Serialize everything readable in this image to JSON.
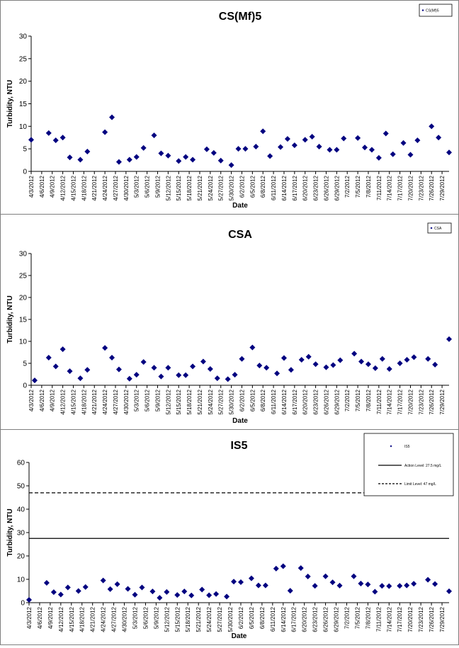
{
  "chart_data": [
    {
      "type": "scatter",
      "title": "CS(Mf)5",
      "xlabel": "Date",
      "ylabel": "Turbidity, NTU",
      "ylim": [
        0,
        30
      ],
      "yticks": [
        0,
        5,
        10,
        15,
        20,
        25,
        30
      ],
      "legend": {
        "position": "top-right",
        "entries": [
          "CS(Mf)5"
        ]
      },
      "x_ticks": [
        "4/3/2012",
        "4/6/2012",
        "4/9/2012",
        "4/12/2012",
        "4/15/2012",
        "4/18/2012",
        "4/21/2012",
        "4/24/2012",
        "4/27/2012",
        "4/30/2012",
        "5/3/2012",
        "5/6/2012",
        "5/9/2012",
        "5/12/2012",
        "5/15/2012",
        "5/18/2012",
        "5/21/2012",
        "5/24/2012",
        "5/27/2012",
        "5/30/2012",
        "6/2/2012",
        "6/5/2012",
        "6/8/2012",
        "6/11/2012",
        "6/14/2012",
        "6/17/2012",
        "6/20/2012",
        "6/23/2012",
        "6/26/2012",
        "6/29/2012",
        "7/2/2012",
        "7/5/2012",
        "7/8/2012",
        "7/11/2012",
        "7/14/2012",
        "7/17/2012",
        "7/20/2012",
        "7/23/2012",
        "7/26/2012",
        "7/29/2012"
      ],
      "x_range": [
        "4/3/2012",
        "7/31/2012"
      ],
      "series": [
        {
          "name": "CS(Mf)5",
          "color": "#000080",
          "x": [
            "4/3/2012",
            "4/8/2012",
            "4/10/2012",
            "4/12/2012",
            "4/14/2012",
            "4/17/2012",
            "4/19/2012",
            "4/24/2012",
            "4/26/2012",
            "4/28/2012",
            "5/1/2012",
            "5/3/2012",
            "5/5/2012",
            "5/8/2012",
            "5/10/2012",
            "5/12/2012",
            "5/15/2012",
            "5/17/2012",
            "5/19/2012",
            "5/23/2012",
            "5/25/2012",
            "5/27/2012",
            "5/30/2012",
            "6/1/2012",
            "6/3/2012",
            "6/6/2012",
            "6/8/2012",
            "6/10/2012",
            "6/13/2012",
            "6/15/2012",
            "6/17/2012",
            "6/20/2012",
            "6/22/2012",
            "6/24/2012",
            "6/27/2012",
            "6/29/2012",
            "7/1/2012",
            "7/5/2012",
            "7/7/2012",
            "7/9/2012",
            "7/11/2012",
            "7/13/2012",
            "7/15/2012",
            "7/18/2012",
            "7/20/2012",
            "7/22/2012",
            "7/26/2012",
            "7/28/2012",
            "7/31/2012"
          ],
          "y": [
            7,
            8.5,
            6.9,
            7.5,
            3.1,
            2.6,
            4.4,
            8.7,
            12,
            2.1,
            2.6,
            3.2,
            5.2,
            8,
            4,
            3.5,
            2.3,
            3.2,
            2.6,
            4.9,
            4.1,
            2.4,
            1.4,
            5,
            5,
            5.5,
            8.9,
            3.4,
            5.4,
            7.2,
            5.8,
            7,
            7.7,
            5.5,
            4.8,
            4.8,
            7.3,
            7.4,
            5.3,
            4.8,
            3,
            8.4,
            3.8,
            6.3,
            3.7,
            6.9,
            10,
            7.5,
            4.2
          ]
        }
      ]
    },
    {
      "type": "scatter",
      "title": "CSA",
      "xlabel": "Date",
      "ylabel": "Turbidity, NTU",
      "ylim": [
        0,
        30
      ],
      "yticks": [
        0,
        5,
        10,
        15,
        20,
        25,
        30
      ],
      "legend": {
        "position": "top-right",
        "entries": [
          "CSA"
        ]
      },
      "x_ticks": [
        "4/3/2012",
        "4/6/2012",
        "4/9/2012",
        "4/12/2012",
        "4/15/2012",
        "4/18/2012",
        "4/21/2012",
        "4/24/2012",
        "4/27/2012",
        "4/30/2012",
        "5/3/2012",
        "5/6/2012",
        "5/9/2012",
        "5/12/2012",
        "5/15/2012",
        "5/18/2012",
        "5/21/2012",
        "5/24/2012",
        "5/27/2012",
        "5/30/2012",
        "6/2/2012",
        "6/5/2012",
        "6/8/2012",
        "6/11/2012",
        "6/14/2012",
        "6/17/2012",
        "6/20/2012",
        "6/23/2012",
        "6/26/2012",
        "6/29/2012",
        "7/2/2012",
        "7/5/2012",
        "7/8/2012",
        "7/11/2012",
        "7/14/2012",
        "7/17/2012",
        "7/20/2012",
        "7/23/2012",
        "7/26/2012",
        "7/29/2012"
      ],
      "x_range": [
        "4/3/2012",
        "7/31/2012"
      ],
      "series": [
        {
          "name": "CSA",
          "color": "#000080",
          "x": [
            "4/4/2012",
            "4/8/2012",
            "4/10/2012",
            "4/12/2012",
            "4/14/2012",
            "4/17/2012",
            "4/19/2012",
            "4/24/2012",
            "4/26/2012",
            "4/28/2012",
            "5/1/2012",
            "5/3/2012",
            "5/5/2012",
            "5/8/2012",
            "5/10/2012",
            "5/12/2012",
            "5/15/2012",
            "5/17/2012",
            "5/19/2012",
            "5/22/2012",
            "5/24/2012",
            "5/26/2012",
            "5/29/2012",
            "5/31/2012",
            "6/2/2012",
            "6/5/2012",
            "6/7/2012",
            "6/9/2012",
            "6/12/2012",
            "6/14/2012",
            "6/16/2012",
            "6/19/2012",
            "6/21/2012",
            "6/23/2012",
            "6/26/2012",
            "6/28/2012",
            "6/30/2012",
            "7/4/2012",
            "7/6/2012",
            "7/8/2012",
            "7/10/2012",
            "7/12/2012",
            "7/14/2012",
            "7/17/2012",
            "7/19/2012",
            "7/21/2012",
            "7/25/2012",
            "7/27/2012",
            "7/31/2012"
          ],
          "y": [
            1.1,
            6.3,
            4.3,
            8.2,
            3.2,
            1.6,
            3.5,
            8.5,
            6.3,
            3.6,
            1.5,
            2.4,
            5.3,
            4,
            2,
            4,
            2.3,
            2.3,
            4.3,
            5.4,
            3.7,
            1.6,
            1.4,
            2.4,
            6,
            8.6,
            4.5,
            4,
            2.7,
            6.2,
            3.5,
            5.8,
            6.5,
            4.8,
            4.1,
            4.6,
            5.7,
            7.2,
            5.4,
            4.8,
            3.9,
            6,
            3.7,
            5,
            5.8,
            6.4,
            6,
            4.7,
            10.5
          ]
        }
      ]
    },
    {
      "type": "scatter",
      "title": "IS5",
      "xlabel": "Date",
      "ylabel": "Turbidity, NTU",
      "ylim": [
        0,
        60
      ],
      "yticks": [
        0,
        10,
        20,
        30,
        40,
        50,
        60
      ],
      "legend": {
        "position": "top-right",
        "entries": [
          "IS5",
          "Action Level: 27.5 mg/L",
          "Limit Level: 47 mg/L"
        ]
      },
      "x_ticks": [
        "4/3/2012",
        "4/6/2012",
        "4/9/2012",
        "4/12/2012",
        "4/15/2012",
        "4/18/2012",
        "4/21/2012",
        "4/24/2012",
        "4/27/2012",
        "4/30/2012",
        "5/3/2012",
        "5/6/2012",
        "5/9/2012",
        "5/12/2012",
        "5/15/2012",
        "5/18/2012",
        "5/21/2012",
        "5/24/2012",
        "5/27/2012",
        "5/30/2012",
        "6/2/2012",
        "6/5/2012",
        "6/8/2012",
        "6/11/2012",
        "6/14/2012",
        "6/17/2012",
        "6/20/2012",
        "6/23/2012",
        "6/26/2012",
        "6/29/2012",
        "7/2/2012",
        "7/5/2012",
        "7/8/2012",
        "7/11/2012",
        "7/14/2012",
        "7/17/2012",
        "7/20/2012",
        "7/23/2012",
        "7/26/2012",
        "7/29/2012"
      ],
      "x_range": [
        "4/3/2012",
        "7/31/2012"
      ],
      "reference_lines": [
        {
          "name": "Action Level: 27.5 mg/L",
          "y": 27.5,
          "style": "solid"
        },
        {
          "name": "Limit Level: 47 mg/L",
          "y": 47,
          "style": "dashed"
        }
      ],
      "series": [
        {
          "name": "IS5",
          "color": "#000080",
          "x": [
            "4/3/2012",
            "4/8/2012",
            "4/10/2012",
            "4/12/2012",
            "4/14/2012",
            "4/17/2012",
            "4/19/2012",
            "4/24/2012",
            "4/26/2012",
            "4/28/2012",
            "5/1/2012",
            "5/3/2012",
            "5/5/2012",
            "5/8/2012",
            "5/10/2012",
            "5/12/2012",
            "5/15/2012",
            "5/17/2012",
            "5/19/2012",
            "5/22/2012",
            "5/24/2012",
            "5/26/2012",
            "5/29/2012",
            "5/31/2012",
            "6/2/2012",
            "6/5/2012",
            "6/7/2012",
            "6/9/2012",
            "6/12/2012",
            "6/14/2012",
            "6/16/2012",
            "6/19/2012",
            "6/21/2012",
            "6/23/2012",
            "6/26/2012",
            "6/28/2012",
            "6/30/2012",
            "7/4/2012",
            "7/6/2012",
            "7/8/2012",
            "7/10/2012",
            "7/12/2012",
            "7/14/2012",
            "7/17/2012",
            "7/19/2012",
            "7/21/2012",
            "7/25/2012",
            "7/27/2012",
            "7/31/2012"
          ],
          "y": [
            1.2,
            8.5,
            4.5,
            3.5,
            6.5,
            5,
            6.7,
            9.5,
            5.8,
            7.9,
            5.9,
            3.4,
            6.5,
            4.8,
            2.1,
            4.6,
            3.3,
            4.8,
            3.1,
            5.6,
            3.2,
            3.7,
            2.6,
            9,
            8.8,
            10.4,
            7.4,
            7.4,
            14.6,
            15.6,
            5.1,
            14.8,
            11.2,
            7.2,
            11.3,
            8.7,
            7.3,
            11.3,
            8.2,
            7.8,
            4.7,
            7.2,
            7.1,
            7.2,
            7.4,
            8.1,
            9.8,
            8,
            4.9
          ]
        }
      ]
    }
  ]
}
